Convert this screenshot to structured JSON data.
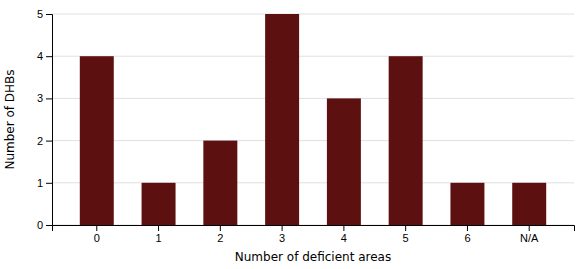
{
  "chart_data": {
    "type": "bar",
    "categories": [
      "0",
      "1",
      "2",
      "3",
      "4",
      "5",
      "6",
      "N/A"
    ],
    "values": [
      4,
      1,
      2,
      5,
      3,
      4,
      1,
      1
    ],
    "color": "#5C1010",
    "xlabel": "Number of deficient areas",
    "ylabel": "Number of DHBs",
    "ylim": [
      0,
      5
    ],
    "yticks": [
      0,
      1,
      2,
      3,
      4,
      5
    ],
    "grid": true
  }
}
